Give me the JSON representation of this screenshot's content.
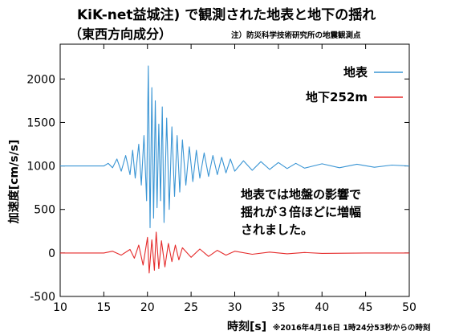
{
  "chart_data": {
    "type": "line",
    "title": "KiK-net益城注) で観測された地表と地下の揺れ",
    "subtitle": "（東西方向成分）",
    "source_note": "注）防災科学技術研究所の地震観測点",
    "xlabel": "時刻[s]",
    "xlabel_note": "※2016年4月16日 1時24分53秒からの時刻",
    "ylabel": "加速度[cm/s/s]",
    "xlim": [
      10,
      50
    ],
    "ylim": [
      -500,
      2400
    ],
    "xticks": [
      "10",
      "15",
      "20",
      "25",
      "30",
      "35",
      "40",
      "45",
      "50"
    ],
    "yticks": [
      "-500",
      "0",
      "500",
      "1000",
      "1500",
      "2000"
    ],
    "legend_position": "top-right",
    "annotation": [
      "地表では地盤の影響で",
      "揺れが３倍ほどに増幅",
      "されました。"
    ],
    "series": [
      {
        "name": "地表",
        "color": "#3a95d4",
        "offset": 1000,
        "x": [
          10,
          15,
          15.5,
          16,
          16.5,
          17,
          17.5,
          18,
          18.3,
          18.6,
          19,
          19.3,
          19.6,
          19.9,
          20.1,
          20.3,
          20.5,
          20.7,
          20.9,
          21.1,
          21.3,
          21.5,
          21.7,
          21.9,
          22.2,
          22.5,
          22.8,
          23.1,
          23.4,
          23.7,
          24,
          24.4,
          24.8,
          25.2,
          25.6,
          26,
          26.5,
          27,
          27.5,
          28,
          28.5,
          29,
          29.5,
          30,
          31,
          32,
          33,
          34,
          35,
          36,
          37,
          38,
          40,
          42,
          44,
          46,
          48,
          50
        ],
        "values": [
          1000,
          1000,
          1030,
          980,
          1080,
          940,
          1120,
          900,
          1180,
          860,
          1250,
          780,
          1350,
          600,
          2150,
          290,
          1900,
          400,
          1750,
          520,
          1480,
          600,
          1680,
          350,
          1550,
          500,
          1450,
          650,
          1350,
          700,
          1300,
          780,
          1220,
          820,
          1180,
          860,
          1150,
          880,
          1120,
          900,
          1100,
          920,
          1080,
          940,
          1060,
          950,
          1050,
          960,
          1040,
          970,
          1030,
          975,
          1025,
          980,
          1020,
          985,
          1010,
          1000
        ]
      },
      {
        "name": "地下252m",
        "color": "#e52b2b",
        "offset": 0,
        "x": [
          10,
          15,
          16,
          17,
          18,
          18.5,
          19,
          19.5,
          20,
          20.2,
          20.5,
          20.8,
          21,
          21.3,
          21.6,
          22,
          22.4,
          22.8,
          23.2,
          23.6,
          24,
          25,
          26,
          27,
          28,
          29,
          30,
          32,
          34,
          36,
          38,
          40,
          45,
          50
        ],
        "values": [
          0,
          0,
          20,
          -25,
          40,
          -60,
          90,
          -140,
          180,
          -230,
          150,
          -200,
          240,
          -180,
          140,
          -160,
          110,
          -100,
          90,
          -80,
          60,
          -50,
          45,
          -40,
          30,
          -25,
          20,
          -15,
          10,
          -10,
          5,
          -5,
          0,
          0
        ]
      }
    ]
  }
}
